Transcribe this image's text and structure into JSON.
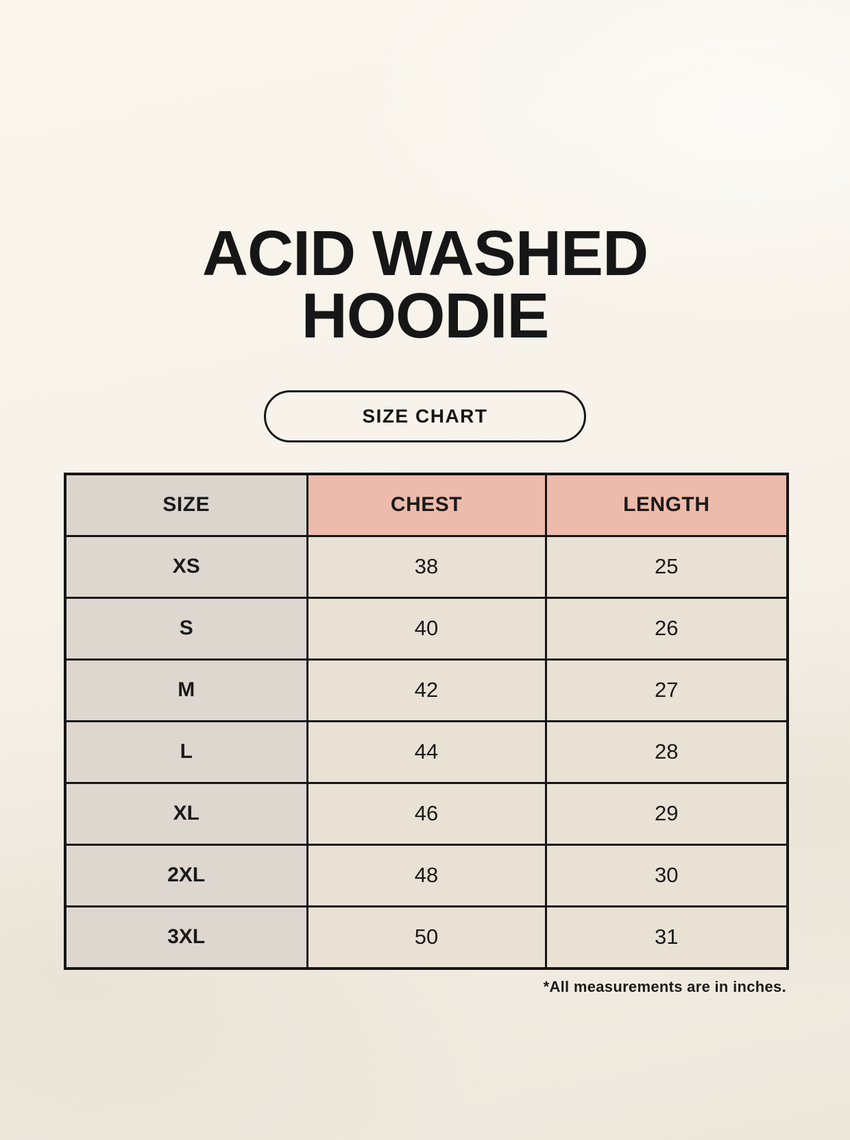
{
  "title": {
    "lines": [
      "ACID WASHED",
      "HOODIE"
    ]
  },
  "size_chart_button_label": "SIZE CHART",
  "footnote": "*All measurements are in inches.",
  "table": {
    "headers": [
      "SIZE",
      "CHEST",
      "LENGTH"
    ],
    "rows": [
      {
        "size": "XS",
        "chest": "38",
        "length": "25"
      },
      {
        "size": "S",
        "chest": "40",
        "length": "26"
      },
      {
        "size": "M",
        "chest": "42",
        "length": "27"
      },
      {
        "size": "L",
        "chest": "44",
        "length": "28"
      },
      {
        "size": "XL",
        "chest": "46",
        "length": "29"
      },
      {
        "size": "2XL",
        "chest": "48",
        "length": "30"
      },
      {
        "size": "3XL",
        "chest": "50",
        "length": "31"
      }
    ]
  },
  "colors": {
    "background_top": "#FAF6EE",
    "background_bottom": "#EDE7DC",
    "size_column_background": "#DED7D0",
    "header_accent_background": "#EDBBAB",
    "data_cell_background": "#E9E1D4",
    "table_border": "#151515",
    "text": "#1A1A1A"
  },
  "chart_data": {
    "type": "table",
    "title": "ACID WASHED HOODIE — SIZE CHART",
    "columns": [
      "SIZE",
      "CHEST",
      "LENGTH"
    ],
    "rows": [
      [
        "XS",
        38,
        25
      ],
      [
        "S",
        40,
        26
      ],
      [
        "M",
        42,
        27
      ],
      [
        "L",
        44,
        28
      ],
      [
        "XL",
        46,
        29
      ],
      [
        "2XL",
        48,
        30
      ],
      [
        "3XL",
        50,
        31
      ]
    ],
    "units": "inches"
  }
}
